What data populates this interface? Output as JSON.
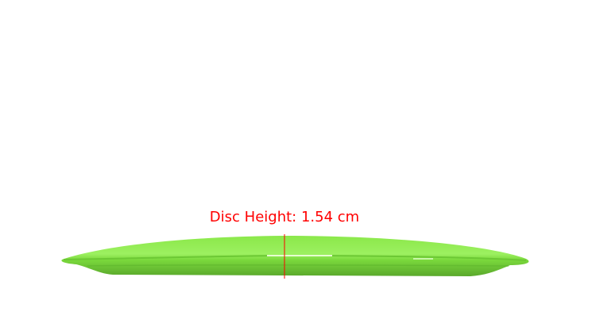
{
  "annotation": {
    "label": "Disc Height: 1.54 cm",
    "color": "#ff0000"
  },
  "disc": {
    "color": "#7ee03a"
  }
}
